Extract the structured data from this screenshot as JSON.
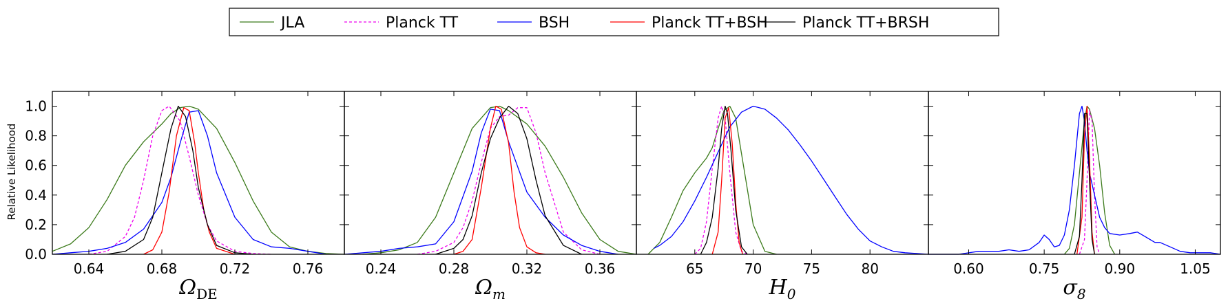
{
  "chart_data": {
    "type": "line",
    "ylabel": "Relative Likelihood",
    "ylim": [
      0,
      1.1
    ],
    "yticks": [
      "0.0",
      "0.2",
      "0.4",
      "0.6",
      "0.8",
      "1.0"
    ],
    "legend": {
      "placement": "top-center",
      "entries": [
        {
          "name": "JLA",
          "color": "#3b7a1a",
          "dash": "solid"
        },
        {
          "name": "Planck TT",
          "color": "#ee00ee",
          "dash": "dashed"
        },
        {
          "name": "BSH",
          "color": "#0000ff",
          "dash": "solid"
        },
        {
          "name": "Planck TT+BSH",
          "color": "#ff0000",
          "dash": "solid"
        },
        {
          "name": "Planck TT+BRSH",
          "color": "#000000",
          "dash": "solid"
        }
      ]
    },
    "panels": [
      {
        "param": "Omega_DE",
        "xlabel_main": "Ω",
        "xlabel_sub": "DE",
        "xlim": [
          0.62,
          0.78
        ],
        "ticks": [
          0.64,
          0.68,
          0.72,
          0.76
        ],
        "tick_labels": [
          "0.64",
          "0.68",
          "0.72",
          "0.76"
        ],
        "series": [
          {
            "name": "JLA",
            "x": [
              0.62,
              0.63,
              0.64,
              0.65,
              0.66,
              0.67,
              0.68,
              0.685,
              0.69,
              0.695,
              0.7,
              0.71,
              0.72,
              0.73,
              0.74,
              0.75,
              0.76,
              0.77,
              0.78
            ],
            "y": [
              0.02,
              0.07,
              0.18,
              0.37,
              0.6,
              0.76,
              0.88,
              0.95,
              0.99,
              1.0,
              0.98,
              0.85,
              0.62,
              0.36,
              0.15,
              0.05,
              0.02,
              0.005,
              0.0
            ]
          },
          {
            "name": "Planck TT",
            "x": [
              0.64,
              0.65,
              0.66,
              0.665,
              0.67,
              0.675,
              0.68,
              0.684,
              0.69,
              0.695,
              0.7,
              0.705,
              0.71,
              0.72,
              0.73,
              0.74
            ],
            "y": [
              0.0,
              0.02,
              0.12,
              0.25,
              0.5,
              0.8,
              0.97,
              1.0,
              0.9,
              0.66,
              0.4,
              0.2,
              0.09,
              0.02,
              0.005,
              0.0
            ]
          },
          {
            "name": "BSH",
            "x": [
              0.62,
              0.63,
              0.64,
              0.65,
              0.66,
              0.67,
              0.68,
              0.685,
              0.69,
              0.695,
              0.7,
              0.705,
              0.71,
              0.72,
              0.73,
              0.74,
              0.75,
              0.76,
              0.77
            ],
            "y": [
              0.0,
              0.01,
              0.02,
              0.04,
              0.08,
              0.17,
              0.35,
              0.52,
              0.75,
              0.96,
              0.97,
              0.8,
              0.55,
              0.25,
              0.1,
              0.05,
              0.04,
              0.02,
              0.0
            ]
          },
          {
            "name": "Planck TT+BSH",
            "x": [
              0.67,
              0.675,
              0.68,
              0.684,
              0.688,
              0.692,
              0.695,
              0.698,
              0.7,
              0.703,
              0.706,
              0.71,
              0.72
            ],
            "y": [
              0.0,
              0.03,
              0.15,
              0.42,
              0.8,
              0.99,
              0.97,
              0.75,
              0.55,
              0.3,
              0.15,
              0.04,
              0.0
            ]
          },
          {
            "name": "Planck TT+BRSH",
            "x": [
              0.65,
              0.66,
              0.67,
              0.675,
              0.68,
              0.685,
              0.689,
              0.693,
              0.697,
              0.7,
              0.705,
              0.71,
              0.72,
              0.73
            ],
            "y": [
              0.0,
              0.02,
              0.1,
              0.25,
              0.55,
              0.85,
              1.0,
              0.93,
              0.7,
              0.45,
              0.2,
              0.06,
              0.01,
              0.0
            ]
          }
        ]
      },
      {
        "param": "Omega_m",
        "xlabel_main": "Ω",
        "xlabel_sub": "m",
        "xlim": [
          0.22,
          0.38
        ],
        "ticks": [
          0.24,
          0.28,
          0.32,
          0.36
        ],
        "tick_labels": [
          "0.24",
          "0.28",
          "0.32",
          "0.36"
        ],
        "series": [
          {
            "name": "JLA",
            "x": [
              0.23,
              0.24,
              0.25,
              0.26,
              0.27,
              0.28,
              0.29,
              0.3,
              0.305,
              0.31,
              0.32,
              0.33,
              0.34,
              0.35,
              0.36,
              0.37,
              0.38
            ],
            "y": [
              0.0,
              0.01,
              0.03,
              0.08,
              0.25,
              0.55,
              0.85,
              0.99,
              1.0,
              0.97,
              0.88,
              0.73,
              0.52,
              0.28,
              0.1,
              0.02,
              0.0
            ]
          },
          {
            "name": "Planck TT",
            "x": [
              0.26,
              0.27,
              0.28,
              0.285,
              0.29,
              0.295,
              0.3,
              0.305,
              0.31,
              0.315,
              0.32,
              0.325,
              0.33,
              0.34,
              0.35,
              0.36
            ],
            "y": [
              0.0,
              0.02,
              0.08,
              0.18,
              0.36,
              0.62,
              0.85,
              0.93,
              0.94,
              0.99,
              0.99,
              0.82,
              0.55,
              0.15,
              0.03,
              0.0
            ]
          },
          {
            "name": "BSH",
            "x": [
              0.22,
              0.24,
              0.25,
              0.26,
              0.27,
              0.28,
              0.29,
              0.295,
              0.3,
              0.305,
              0.31,
              0.32,
              0.33,
              0.34,
              0.35,
              0.36,
              0.37
            ],
            "y": [
              0.0,
              0.02,
              0.04,
              0.05,
              0.07,
              0.22,
              0.56,
              0.82,
              0.98,
              0.97,
              0.76,
              0.42,
              0.25,
              0.13,
              0.06,
              0.02,
              0.0
            ]
          },
          {
            "name": "Planck TT+BSH",
            "x": [
              0.28,
              0.285,
              0.29,
              0.295,
              0.3,
              0.303,
              0.306,
              0.31,
              0.313,
              0.316,
              0.32,
              0.325,
              0.33
            ],
            "y": [
              0.0,
              0.02,
              0.1,
              0.45,
              0.85,
              1.0,
              0.98,
              0.75,
              0.42,
              0.18,
              0.05,
              0.01,
              0.0
            ]
          },
          {
            "name": "Planck TT+BRSH",
            "x": [
              0.27,
              0.28,
              0.285,
              0.29,
              0.295,
              0.3,
              0.305,
              0.31,
              0.315,
              0.32,
              0.325,
              0.33,
              0.34,
              0.35
            ],
            "y": [
              0.0,
              0.04,
              0.1,
              0.26,
              0.55,
              0.78,
              0.92,
              1.0,
              0.95,
              0.78,
              0.5,
              0.26,
              0.06,
              0.0
            ]
          }
        ]
      },
      {
        "param": "H_0",
        "xlabel_main": "H",
        "xlabel_sub": "0",
        "xlim": [
          60,
          85
        ],
        "ticks": [
          65,
          70,
          75,
          80
        ],
        "tick_labels": [
          "65",
          "70",
          "75",
          "80"
        ],
        "series": [
          {
            "name": "JLA",
            "x": [
              61,
              62,
              63,
              64,
              65,
              66,
              66.5,
              67,
              67.5,
              68,
              68.5,
              69,
              70,
              71,
              72
            ],
            "y": [
              0.0,
              0.08,
              0.25,
              0.43,
              0.55,
              0.65,
              0.72,
              0.85,
              0.97,
              1.0,
              0.92,
              0.68,
              0.2,
              0.02,
              0.0
            ]
          },
          {
            "name": "Planck TT",
            "x": [
              65,
              65.5,
              66,
              66.5,
              67,
              67.3,
              67.6,
              68,
              68.5,
              69,
              69.5
            ],
            "y": [
              0.0,
              0.04,
              0.22,
              0.58,
              0.92,
              1.0,
              0.92,
              0.55,
              0.15,
              0.02,
              0.0
            ]
          },
          {
            "name": "BSH",
            "x": [
              61.5,
              62,
              63,
              64,
              65,
              66,
              67,
              68,
              69,
              70,
              71,
              72,
              73,
              74,
              75,
              76,
              77,
              78,
              79,
              80,
              81,
              82,
              83,
              84,
              85
            ],
            "y": [
              0.04,
              0.06,
              0.12,
              0.22,
              0.36,
              0.52,
              0.69,
              0.86,
              0.96,
              1.0,
              0.98,
              0.92,
              0.84,
              0.74,
              0.63,
              0.51,
              0.39,
              0.27,
              0.17,
              0.09,
              0.05,
              0.02,
              0.01,
              0.005,
              0.0
            ]
          },
          {
            "name": "Planck TT+BSH",
            "x": [
              66.5,
              67,
              67.3,
              67.6,
              67.9,
              68.2,
              68.5,
              68.8,
              69.1
            ],
            "y": [
              0.0,
              0.15,
              0.5,
              0.92,
              0.99,
              0.75,
              0.35,
              0.08,
              0.0
            ]
          },
          {
            "name": "Planck TT+BRSH",
            "x": [
              65.5,
              66,
              66.5,
              67,
              67.3,
              67.6,
              67.8,
              68.1,
              68.5,
              69,
              69.5
            ],
            "y": [
              0.0,
              0.08,
              0.25,
              0.58,
              0.85,
              1.0,
              0.95,
              0.7,
              0.3,
              0.05,
              0.0
            ]
          }
        ]
      },
      {
        "param": "sigma_8",
        "xlabel_main": "σ",
        "xlabel_sub": "8",
        "xlim": [
          0.52,
          1.1
        ],
        "ticks": [
          0.6,
          0.75,
          0.9,
          1.05
        ],
        "tick_labels": [
          "0.60",
          "0.75",
          "0.90",
          "1.05"
        ],
        "series": [
          {
            "name": "JLA",
            "x": [
              0.79,
              0.8,
              0.81,
              0.82,
              0.83,
              0.835,
              0.84,
              0.85,
              0.86,
              0.87,
              0.88,
              0.89
            ],
            "y": [
              0.0,
              0.04,
              0.2,
              0.55,
              0.9,
              1.0,
              0.98,
              0.85,
              0.6,
              0.28,
              0.06,
              0.0
            ]
          },
          {
            "name": "Planck TT",
            "x": [
              0.82,
              0.83,
              0.835,
              0.84,
              0.845,
              0.85,
              0.855,
              0.86
            ],
            "y": [
              0.0,
              0.1,
              0.5,
              0.97,
              0.9,
              0.4,
              0.05,
              0.0
            ]
          },
          {
            "name": "BSH",
            "x": [
              0.52,
              0.58,
              0.62,
              0.66,
              0.68,
              0.7,
              0.72,
              0.74,
              0.75,
              0.76,
              0.77,
              0.78,
              0.79,
              0.8,
              0.81,
              0.82,
              0.825,
              0.83,
              0.835,
              0.84,
              0.85,
              0.86,
              0.87,
              0.88,
              0.9,
              0.92,
              0.935,
              0.95,
              0.97,
              0.98,
              1.0,
              1.02,
              1.04,
              1.06,
              1.08,
              1.1
            ],
            "y": [
              0.0,
              0.0,
              0.02,
              0.02,
              0.03,
              0.02,
              0.03,
              0.08,
              0.13,
              0.1,
              0.05,
              0.06,
              0.13,
              0.3,
              0.6,
              0.95,
              1.0,
              0.9,
              0.7,
              0.55,
              0.4,
              0.25,
              0.18,
              0.14,
              0.13,
              0.14,
              0.15,
              0.12,
              0.08,
              0.08,
              0.05,
              0.02,
              0.01,
              0.01,
              0.01,
              0.0
            ]
          },
          {
            "name": "Planck TT+BSH",
            "x": [
              0.815,
              0.825,
              0.83,
              0.835,
              0.84,
              0.845,
              0.85
            ],
            "y": [
              0.0,
              0.25,
              0.8,
              1.0,
              0.65,
              0.15,
              0.0
            ]
          },
          {
            "name": "Planck TT+BRSH",
            "x": [
              0.81,
              0.82,
              0.825,
              0.83,
              0.835,
              0.84,
              0.845,
              0.85
            ],
            "y": [
              0.0,
              0.12,
              0.5,
              0.95,
              0.95,
              0.5,
              0.1,
              0.0
            ]
          }
        ]
      }
    ]
  }
}
